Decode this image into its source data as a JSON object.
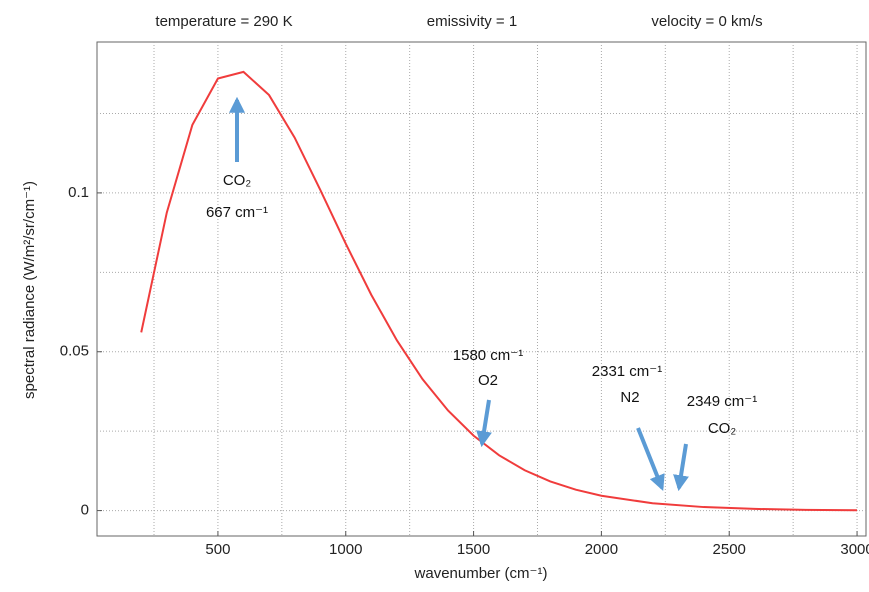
{
  "chart_data": {
    "type": "line",
    "header": [
      "temperature = 290 K",
      "emissivity = 1",
      "velocity = 0 km/s"
    ],
    "x_label": "wavenumber (cm⁻¹)",
    "y_label": "spectral radiance (W/m²/sr/cm⁻¹)",
    "x": [
      200,
      300,
      400,
      500,
      600,
      700,
      800,
      900,
      1000,
      1100,
      1200,
      1300,
      1400,
      1500,
      1600,
      1700,
      1800,
      1900,
      2000,
      2200,
      2400,
      2600,
      2800,
      3000
    ],
    "series": [
      {
        "color": "#f03c3c",
        "values": [
          0.0561,
          0.0938,
          0.1214,
          0.136,
          0.1381,
          0.1308,
          0.1174,
          0.101,
          0.084,
          0.0679,
          0.0536,
          0.0414,
          0.0315,
          0.0236,
          0.0174,
          0.0127,
          0.00919,
          0.00658,
          0.00467,
          0.00231,
          0.00111,
          0.00052,
          0.00024,
          0.00011
        ]
      }
    ],
    "xlim": [
      27,
      3035
    ],
    "ylim": [
      -0.008,
      0.1475
    ],
    "xticks": [
      500,
      1000,
      1500,
      2000,
      2500,
      3000
    ],
    "yticks": [
      0,
      0.05,
      0.1
    ],
    "x_minor_ticks": [
      250,
      750,
      1250,
      1750,
      2250,
      2750
    ],
    "y_minor_ticks": [
      0.025,
      0.075,
      0.125
    ],
    "grid": true,
    "annotations": [
      {
        "lines": [
          "CO₂",
          "667 cm⁻¹"
        ]
      },
      {
        "lines": [
          "1580 cm⁻¹",
          "O2"
        ]
      },
      {
        "lines": [
          "2331 cm⁻¹",
          "N2"
        ]
      },
      {
        "lines": [
          "2349 cm⁻¹",
          "CO₂"
        ]
      }
    ]
  }
}
